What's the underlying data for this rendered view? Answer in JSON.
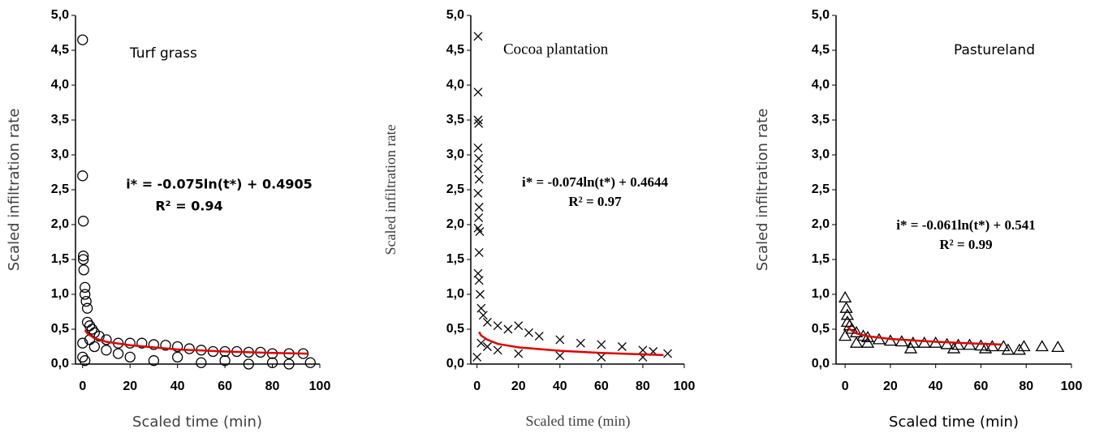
{
  "chart_data": [
    {
      "type": "scatter",
      "title": "Turf grass",
      "xlabel": "Scaled time (min)",
      "ylabel": "Scaled infiltration rate",
      "annotations": [
        "i* = -0.075ln(t*) + 0.4905",
        "R² = 0.94"
      ],
      "xlim": [
        -3,
        100
      ],
      "ylim": [
        0,
        5
      ],
      "xticks": [
        0,
        20,
        40,
        60,
        80,
        100
      ],
      "yticks": [
        {
          "value": 0,
          "label": "0,0"
        },
        {
          "value": 0.5,
          "label": "0,5"
        },
        {
          "value": 1,
          "label": "1,0"
        },
        {
          "value": 1.5,
          "label": "1,5"
        },
        {
          "value": 2,
          "label": "2,0"
        },
        {
          "value": 2.5,
          "label": "2,5"
        },
        {
          "value": 3,
          "label": "3,0"
        },
        {
          "value": 3.5,
          "label": "3,5"
        },
        {
          "value": 4,
          "label": "4,0"
        },
        {
          "value": 4.5,
          "label": "4,5"
        },
        {
          "value": 5,
          "label": "5,0"
        }
      ],
      "series": [
        {
          "color": "#000000",
          "marker": "circle",
          "x": [
            0,
            0,
            0.3,
            0.3,
            0.3,
            0.5,
            1,
            1,
            1.5,
            2,
            2,
            3,
            4,
            5,
            0,
            0,
            1,
            7,
            10,
            15,
            20,
            25,
            30,
            35,
            40,
            45,
            50,
            55,
            60,
            65,
            70,
            75,
            80,
            87,
            93,
            96,
            20,
            30,
            40,
            50,
            60,
            70,
            80,
            87,
            10,
            15,
            5,
            3
          ],
          "values": [
            4.65,
            2.7,
            2.05,
            1.55,
            1.5,
            1.35,
            1.1,
            1.0,
            0.9,
            0.8,
            0.6,
            0.55,
            0.5,
            0.45,
            0.3,
            0.1,
            0.05,
            0.4,
            0.35,
            0.3,
            0.3,
            0.3,
            0.28,
            0.27,
            0.25,
            0.22,
            0.2,
            0.18,
            0.18,
            0.18,
            0.17,
            0.17,
            0.15,
            0.15,
            0.15,
            0.02,
            0.1,
            0.05,
            0.1,
            0.02,
            0.05,
            0.0,
            0.02,
            0.0,
            0.2,
            0.15,
            0.25,
            0.35
          ]
        },
        {
          "color": "#e00000",
          "marker": "line",
          "x": [
            1,
            2,
            5,
            10,
            20,
            40,
            60,
            80,
            95
          ],
          "values": [
            0.49,
            0.44,
            0.37,
            0.32,
            0.27,
            0.21,
            0.18,
            0.16,
            0.15
          ]
        }
      ]
    },
    {
      "type": "scatter",
      "title": "Cocoa plantation",
      "xlabel": "Scaled time (min)",
      "ylabel": "Scaled infiltration rate",
      "annotations": [
        "i* = -0.074ln(t*) + 0.4644",
        "R² = 0.97"
      ],
      "xlim": [
        -3,
        100
      ],
      "ylim": [
        0,
        5
      ],
      "xticks": [
        0,
        20,
        40,
        60,
        80,
        100
      ],
      "yticks": [
        {
          "value": 0,
          "label": "0,0"
        },
        {
          "value": 0.5,
          "label": "0,5"
        },
        {
          "value": 1,
          "label": "1,0"
        },
        {
          "value": 1.5,
          "label": "1,5"
        },
        {
          "value": 2,
          "label": "2,0"
        },
        {
          "value": 2.5,
          "label": "2,5"
        },
        {
          "value": 3,
          "label": "3,0"
        },
        {
          "value": 3.5,
          "label": "3,5"
        },
        {
          "value": 4,
          "label": "4,0"
        },
        {
          "value": 4.5,
          "label": "4,5"
        },
        {
          "value": 5,
          "label": "5,0"
        }
      ],
      "series": [
        {
          "color": "#000000",
          "marker": "cross",
          "x": [
            0.5,
            0.5,
            0.5,
            0.8,
            0.5,
            0.8,
            0.5,
            1,
            0.5,
            1,
            0.8,
            1.3,
            0.5,
            1,
            0.5,
            1,
            1.5,
            2,
            3,
            5,
            10,
            15,
            20,
            25,
            30,
            40,
            50,
            60,
            70,
            80,
            85,
            92,
            10,
            20,
            40,
            60,
            80,
            5,
            2,
            0
          ],
          "values": [
            4.7,
            3.9,
            3.5,
            3.45,
            3.1,
            2.95,
            2.8,
            2.65,
            2.45,
            2.25,
            2.1,
            1.9,
            1.95,
            1.6,
            1.3,
            1.2,
            1.0,
            0.8,
            0.7,
            0.6,
            0.55,
            0.5,
            0.55,
            0.45,
            0.4,
            0.35,
            0.3,
            0.28,
            0.25,
            0.2,
            0.18,
            0.15,
            0.2,
            0.15,
            0.12,
            0.1,
            0.1,
            0.25,
            0.3,
            0.1
          ]
        },
        {
          "color": "#e00000",
          "marker": "line",
          "x": [
            1,
            2,
            5,
            10,
            20,
            40,
            60,
            80,
            90
          ],
          "values": [
            0.46,
            0.41,
            0.35,
            0.29,
            0.24,
            0.19,
            0.16,
            0.14,
            0.13
          ]
        }
      ]
    },
    {
      "type": "scatter",
      "title": "Pastureland",
      "xlabel": "Scaled time (min)",
      "ylabel": "Scaled infiltration rate",
      "annotations": [
        "i* = -0.061ln(t*) + 0.541",
        "R² = 0.99"
      ],
      "xlim": [
        -4,
        100
      ],
      "ylim": [
        0,
        5
      ],
      "xticks": [
        0,
        20,
        40,
        60,
        80,
        100
      ],
      "yticks": [
        {
          "value": 0,
          "label": "0,0"
        },
        {
          "value": 0.5,
          "label": "0,5"
        },
        {
          "value": 1,
          "label": "1,0"
        },
        {
          "value": 1.5,
          "label": "1,5"
        },
        {
          "value": 2,
          "label": "2,0"
        },
        {
          "value": 2.5,
          "label": "2,5"
        },
        {
          "value": 3,
          "label": "3,0"
        },
        {
          "value": 3.5,
          "label": "3,5"
        },
        {
          "value": 4,
          "label": "4,0"
        },
        {
          "value": 4.5,
          "label": "4,5"
        },
        {
          "value": 5,
          "label": "5,0"
        }
      ],
      "series": [
        {
          "color": "#000000",
          "marker": "triangle",
          "x": [
            0,
            0.5,
            1,
            1,
            2,
            3,
            5,
            8,
            10,
            15,
            20,
            25,
            30,
            35,
            40,
            45,
            50,
            55,
            60,
            65,
            70,
            72,
            77,
            79,
            87,
            94,
            29,
            48,
            0,
            5,
            10,
            62
          ],
          "values": [
            0.95,
            0.8,
            0.7,
            0.6,
            0.55,
            0.5,
            0.45,
            0.4,
            0.38,
            0.35,
            0.33,
            0.32,
            0.3,
            0.3,
            0.3,
            0.28,
            0.27,
            0.27,
            0.26,
            0.25,
            0.25,
            0.2,
            0.2,
            0.25,
            0.25,
            0.24,
            0.22,
            0.22,
            0.4,
            0.3,
            0.3,
            0.22
          ]
        },
        {
          "color": "#e00000",
          "marker": "line",
          "x": [
            1,
            2,
            5,
            10,
            20,
            40,
            60,
            69
          ],
          "values": [
            0.54,
            0.5,
            0.44,
            0.4,
            0.36,
            0.32,
            0.29,
            0.28
          ]
        }
      ]
    }
  ]
}
